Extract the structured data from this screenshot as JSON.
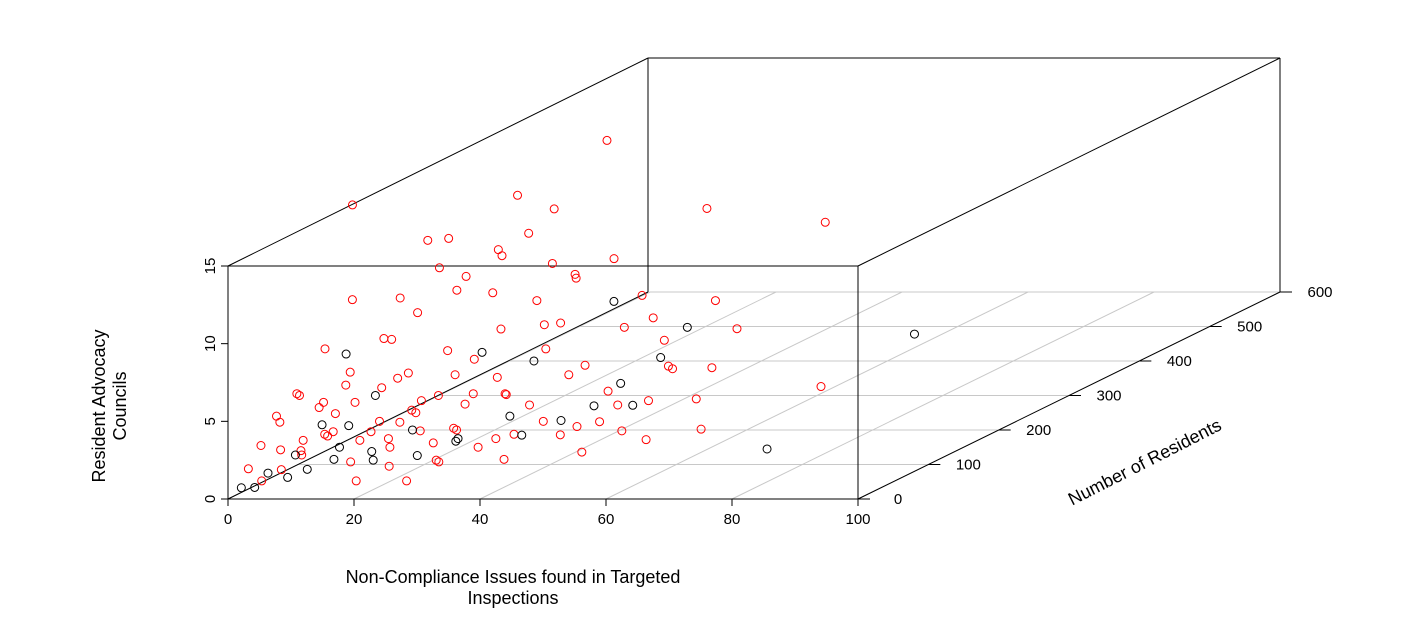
{
  "chart_data": {
    "type": "scatter3d",
    "x_label": "Non-Compliance Issues found in Targeted Inspections",
    "y_label": "Number of Residents",
    "z_label": "Resident Advocacy Councils",
    "xlim": [
      0,
      100
    ],
    "xticks": [
      0,
      20,
      40,
      60,
      80,
      100
    ],
    "ylim": [
      0,
      600
    ],
    "yticks": [
      0,
      100,
      200,
      300,
      400,
      500,
      600
    ],
    "zlim": [
      0,
      15
    ],
    "zticks": [
      0,
      5,
      10,
      15
    ],
    "grid": true,
    "series": [
      {
        "color": "#ff0000",
        "x": [
          2,
          4,
          5,
          6,
          8,
          10,
          3,
          7,
          12,
          9,
          14,
          11,
          15,
          13,
          18,
          16,
          20,
          17,
          22,
          19,
          24,
          21,
          26,
          23,
          28,
          25,
          30,
          27,
          32,
          29,
          34,
          31,
          36,
          33,
          38,
          35,
          40,
          6,
          8,
          4,
          10,
          12,
          14,
          3,
          5,
          7,
          9,
          11,
          13,
          2,
          16,
          18,
          20,
          22,
          24,
          26,
          28,
          30,
          1,
          3,
          5,
          1,
          2,
          6,
          8,
          10,
          12,
          15,
          17,
          19,
          21,
          25,
          27,
          29,
          33,
          36,
          40,
          42,
          45,
          48,
          44,
          50,
          52,
          55,
          46,
          42,
          38,
          34,
          30,
          24,
          18,
          10,
          6,
          15,
          20,
          26,
          12,
          8,
          15.5,
          1,
          12.7,
          20.2,
          33.4,
          71.8,
          3.8,
          22.2,
          21.6,
          38.3,
          47.3,
          48.9,
          55.2
        ],
        "y": [
          30,
          40,
          60,
          50,
          70,
          60,
          80,
          90,
          80,
          100,
          90,
          120,
          110,
          140,
          100,
          130,
          120,
          160,
          140,
          180,
          110,
          200,
          150,
          90,
          130,
          170,
          160,
          210,
          120,
          190,
          180,
          230,
          150,
          100,
          200,
          250,
          170,
          120,
          150,
          100,
          180,
          60,
          200,
          150,
          200,
          170,
          220,
          240,
          260,
          120,
          60,
          80,
          50,
          70,
          60,
          90,
          70,
          80,
          60,
          20,
          30,
          20,
          80,
          20,
          30,
          40,
          30,
          40,
          30,
          60,
          40,
          30,
          50,
          40,
          60,
          70,
          90,
          120,
          100,
          130,
          160,
          150,
          200,
          180,
          220,
          250,
          280,
          300,
          320,
          280,
          300,
          300,
          260,
          250,
          260,
          240,
          320,
          340,
          400,
          168,
          350,
          500,
          550,
          200,
          250,
          350,
          300,
          350,
          300,
          250,
          100
        ],
        "z": [
          0.5,
          1,
          1.5,
          2,
          2.5,
          3,
          2,
          3.5,
          2,
          4,
          3,
          4.5,
          2.5,
          5,
          3.5,
          1.5,
          4,
          6,
          3,
          5,
          2,
          6.5,
          4.5,
          0.5,
          1,
          3,
          2.5,
          5,
          1.5,
          7,
          4,
          3.5,
          0.8,
          4.5,
          2.5,
          5.5,
          1.2,
          5.5,
          7,
          4,
          8,
          6,
          9,
          9.5,
          8.5,
          6.5,
          10,
          9,
          7.5,
          7,
          3,
          6,
          1,
          4,
          5,
          6,
          3,
          5,
          4,
          3,
          2.5,
          1.5,
          5,
          4.5,
          6,
          5,
          3.5,
          1.5,
          0.5,
          2,
          3,
          0.5,
          2.5,
          1.5,
          2,
          1,
          3,
          2,
          0.8,
          1.5,
          2.5,
          3,
          2,
          0.5,
          3.5,
          3,
          4,
          5,
          6,
          8,
          8.5,
          9,
          11,
          10.5,
          7,
          6,
          10,
          12,
          14.2,
          15.2,
          10.9,
          7.6,
          5.6,
          2.8,
          11.1,
          7.7,
          7.8,
          5.0,
          4.3,
          2.9,
          1.6
        ]
      },
      {
        "color": "#000000",
        "x": [
          1,
          2,
          3,
          5,
          4,
          7,
          9,
          11,
          13,
          6,
          8,
          15,
          17,
          20,
          22,
          25,
          28,
          31,
          35,
          38,
          2,
          10,
          18,
          24,
          40,
          43,
          47.5,
          55.6,
          74.4,
          30,
          45
        ],
        "y": [
          10,
          20,
          30,
          40,
          60,
          50,
          70,
          60,
          90,
          80,
          100,
          70,
          110,
          90,
          130,
          100,
          150,
          140,
          160,
          180,
          150,
          120,
          200,
          220,
          200,
          230,
          150,
          478,
          100,
          280,
          250
        ],
        "z": [
          0.5,
          0.3,
          1,
          0.5,
          1.5,
          0.8,
          1,
          2,
          0.5,
          3,
          2.5,
          1.5,
          2,
          0.8,
          1,
          1.5,
          2,
          1,
          1.5,
          2,
          6,
          4,
          5,
          4,
          3,
          4,
          2.7,
          0,
          1,
          6.5,
          5.5
        ]
      }
    ]
  }
}
